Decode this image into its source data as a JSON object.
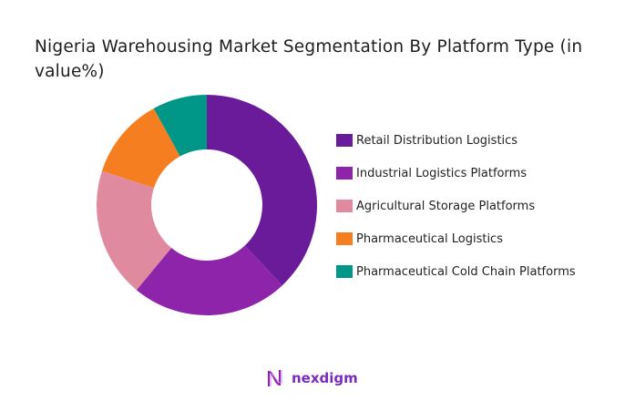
{
  "chart_data": {
    "type": "pie",
    "donut": true,
    "title": "Nigeria Warehousing Market Segmentation By Platform Type (in value%)",
    "categories": [
      "Retail Distribution Logistics",
      "Industrial Logistics Platforms",
      "Agricultural Storage Platforms",
      "Pharmaceutical Logistics",
      "Pharmaceutical Cold Chain Platforms"
    ],
    "values": [
      38,
      23,
      19,
      12,
      8
    ],
    "colors": [
      "#6a1b9a",
      "#8e24aa",
      "#e08aa0",
      "#f57f20",
      "#009688"
    ],
    "legend_position": "right"
  },
  "brand": {
    "name": "nexdigm",
    "color": "#7b2cbf"
  }
}
